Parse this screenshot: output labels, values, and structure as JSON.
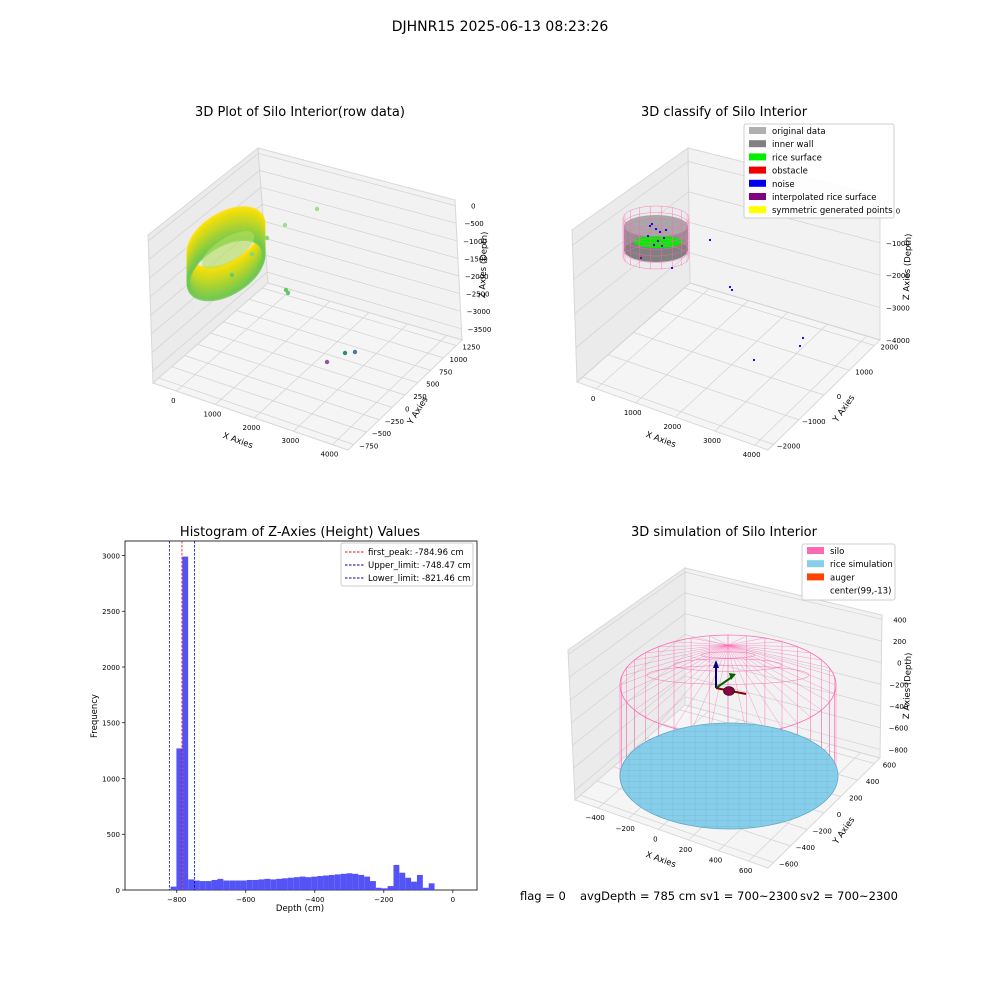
{
  "figure": {
    "suptitle": "DJHNR15 2025-06-13 08:23:26",
    "footer": {
      "flag": "flag = 0",
      "avg_depth": "avgDepth = 785 cm",
      "sv1": "sv1 = 700~2300",
      "sv2": "sv2 = 700~2300"
    }
  },
  "chart_data": [
    {
      "id": "raw",
      "type": "scatter",
      "title": "3D Plot of Silo Interior(row data)",
      "xlabel": "X Axies",
      "ylabel": "Y Axies",
      "zlabel": "Z Axies (Depth)",
      "x_ticks": [
        "0",
        "1000",
        "2000",
        "3000",
        "4000"
      ],
      "y_ticks": [
        "−750",
        "−500",
        "−250",
        "0",
        "250",
        "500",
        "750",
        "1000",
        "1250"
      ],
      "z_ticks": [
        "0",
        "−500",
        "−1000",
        "−1500",
        "−2000",
        "−2500",
        "−3000",
        "−3500"
      ],
      "colors": {
        "min": "#ffe000",
        "max": "#3a7fbf"
      },
      "outlier_points": [
        {
          "x": 1500,
          "y": 1200,
          "z": -150
        },
        {
          "x": 1050,
          "y": 1100,
          "z": -500
        },
        {
          "x": 950,
          "y": 900,
          "z": -1500
        },
        {
          "x": 800,
          "y": 700,
          "z": -1700
        },
        {
          "x": 1800,
          "y": 200,
          "z": -2500
        },
        {
          "x": 1850,
          "y": 150,
          "z": -2600
        },
        {
          "x": 3200,
          "y": -600,
          "z": -3600
        },
        {
          "x": 3400,
          "y": -500,
          "z": -3550
        },
        {
          "x": 3550,
          "y": -450,
          "z": -3520
        }
      ]
    },
    {
      "id": "classify",
      "type": "scatter",
      "title": "3D classify of Silo Interior",
      "xlabel": "X Axies",
      "ylabel": "Y Axies",
      "zlabel": "Z Axies (Depth)",
      "x_ticks": [
        "0",
        "1000",
        "2000",
        "3000",
        "4000"
      ],
      "y_ticks": [
        "−2000",
        "−1000",
        "0",
        "1000",
        "2000"
      ],
      "z_ticks": [
        "0",
        "−1000",
        "−2000",
        "−3000",
        "−4000"
      ],
      "legend": [
        {
          "label": "original data",
          "color": "#b0b0b0"
        },
        {
          "label": "inner wall",
          "color": "#808080"
        },
        {
          "label": "rice surface",
          "color": "#00ee00"
        },
        {
          "label": "obstacle",
          "color": "#ee0000"
        },
        {
          "label": "noise",
          "color": "#0000ee"
        },
        {
          "label": "interpolated rice surface",
          "color": "#800080"
        },
        {
          "label": "symmetric generated points",
          "color": "#ffff00"
        }
      ]
    },
    {
      "id": "histogram",
      "type": "bar",
      "title": "Histogram of Z-Axies (Height) Values",
      "xlabel": "Depth (cm)",
      "ylabel": "Frequency",
      "xlim": [
        -950,
        70
      ],
      "ylim": [
        0,
        3130
      ],
      "x_ticks": [
        -800,
        -600,
        -400,
        -200,
        0
      ],
      "y_ticks": [
        0,
        500,
        1000,
        1500,
        2000,
        2500,
        3000
      ],
      "bar_color": "#4a4af6",
      "bin_width": 17,
      "bin_start": -818,
      "values": [
        30,
        1270,
        2990,
        95,
        85,
        80,
        80,
        90,
        100,
        85,
        85,
        85,
        85,
        90,
        90,
        95,
        100,
        95,
        100,
        105,
        110,
        115,
        120,
        115,
        120,
        125,
        130,
        135,
        140,
        145,
        150,
        145,
        135,
        120,
        80,
        20,
        15,
        35,
        225,
        155,
        110,
        75,
        135,
        20,
        60
      ],
      "vlines": [
        {
          "label": "first_peak: -784.96 cm",
          "value": -784.96,
          "color": "#ff0000"
        },
        {
          "label": "Upper_limit: -748.47 cm",
          "value": -748.47,
          "color": "#0000aa"
        },
        {
          "label": "Lower_limit: -821.46 cm",
          "value": -821.46,
          "color": "#0000aa"
        }
      ]
    },
    {
      "id": "simulation",
      "type": "scatter",
      "title": "3D simulation of Silo Interior",
      "xlabel": "X Axies",
      "ylabel": "Y Axies",
      "zlabel": "Z Axies (Depth)",
      "x_ticks": [
        "−400",
        "−200",
        "0",
        "200",
        "400",
        "600"
      ],
      "y_ticks": [
        "−600",
        "−400",
        "−200",
        "0",
        "200",
        "400",
        "600"
      ],
      "z_ticks": [
        "400",
        "200",
        "0",
        "−200",
        "−400",
        "−600",
        "−800"
      ],
      "legend": [
        {
          "label": "silo",
          "color": "#ff69b4"
        },
        {
          "label": "rice simulation",
          "color": "#87ceeb"
        },
        {
          "label": "auger",
          "color": "#ff4500"
        },
        {
          "label": "center(99,-13)",
          "color": "none"
        }
      ]
    }
  ]
}
